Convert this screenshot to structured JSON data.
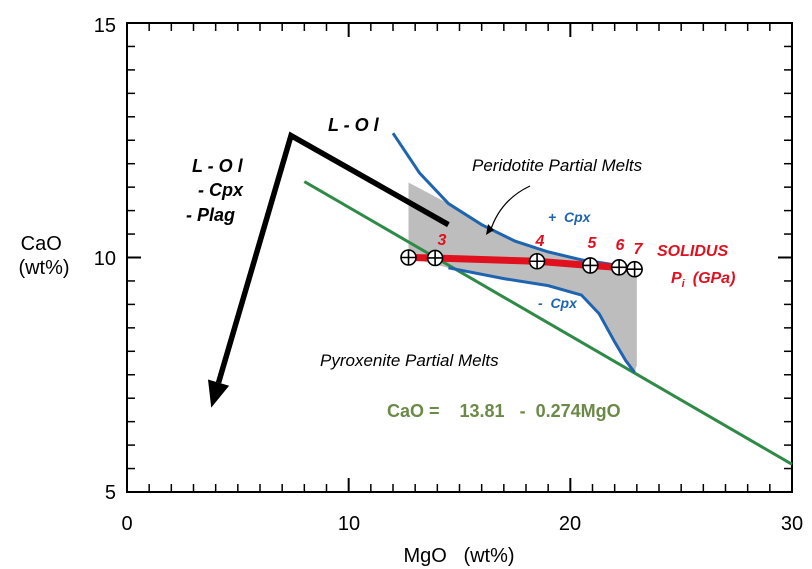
{
  "colors": {
    "black": "#000000",
    "blue": "#1f64b0",
    "green": "#2e8a46",
    "red": "#e0101e",
    "gray_fill": "#bdbdbd",
    "equation_text": "#6b8a48"
  },
  "chart_data": {
    "type": "line",
    "title": "",
    "xlabel": "MgO   (wt%)",
    "ylabel": "CaO\n(wt%)",
    "xlim": [
      0,
      30
    ],
    "ylim": [
      5,
      15
    ],
    "xticks": [
      0,
      10,
      20,
      30
    ],
    "yticks": [
      5,
      10,
      15
    ],
    "xtick_labels": [
      "0",
      "10",
      "20",
      "30"
    ],
    "ytick_labels": [
      "5",
      "10",
      "15"
    ],
    "grid": false,
    "series": [
      {
        "kind": "line",
        "color": "#2e8a46",
        "x": [
          8.0,
          30.0
        ],
        "y": [
          11.62,
          5.59
        ]
      },
      {
        "kind": "line",
        "color": "#000000",
        "x": [
          14.5,
          7.4,
          3.8
        ],
        "y": [
          10.7,
          12.6,
          6.8
        ],
        "arrow_end": true
      },
      {
        "kind": "line",
        "color": "#1f64b0",
        "x": [
          12.0,
          13.2,
          14.5,
          16.0,
          17.5,
          19.0,
          20.5,
          21.5,
          22.8
        ],
        "y": [
          12.65,
          11.8,
          11.15,
          10.7,
          10.35,
          10.12,
          9.95,
          9.88,
          9.78
        ]
      },
      {
        "kind": "line",
        "color": "#1f64b0",
        "x": [
          14.5,
          17.0,
          19.0,
          20.5,
          21.3,
          22.0,
          22.5,
          22.9
        ],
        "y": [
          9.78,
          9.55,
          9.4,
          9.2,
          8.8,
          8.2,
          7.8,
          7.55
        ]
      },
      {
        "kind": "line",
        "color": "#e0101e",
        "x": [
          12.7,
          13.9,
          18.5,
          20.9,
          22.2,
          22.9
        ],
        "y": [
          10.0,
          9.99,
          9.92,
          9.83,
          9.79,
          9.75
        ]
      },
      {
        "kind": "points",
        "x": [
          12.7,
          13.9,
          18.5,
          20.9,
          22.2,
          22.9
        ],
        "y": [
          10.0,
          9.99,
          9.92,
          9.83,
          9.79,
          9.75
        ]
      },
      {
        "kind": "area",
        "color": "#bdbdbd",
        "x": [
          12.7,
          12.7,
          14.5,
          16.0,
          17.5,
          19.0,
          20.5,
          21.5,
          22.5,
          23.0,
          23.0,
          22.9,
          22.5,
          22.0,
          21.3,
          20.5,
          19.0,
          17.0,
          14.5,
          12.7
        ],
        "y": [
          10.0,
          11.6,
          11.15,
          10.7,
          10.35,
          10.12,
          9.95,
          9.88,
          9.8,
          9.6,
          7.7,
          7.55,
          7.8,
          8.2,
          8.8,
          9.2,
          9.4,
          9.55,
          9.78,
          10.0
        ]
      }
    ],
    "annotations": {
      "l_ol": "L - O l",
      "l_ol_cpx_plag": [
        "L - O l",
        "- Cpx",
        "- Plag"
      ],
      "peridotite": "Peridotite Partial Melts",
      "pyroxenite": "Pyroxenite Partial Melts",
      "plus_cpx": "+  Cpx",
      "minus_cpx": "-  Cpx",
      "solidus": "SOLIDUS",
      "pi_label": "P",
      "pi_sub": "i",
      "pi_unit": "(GPa)",
      "pressure_labels": [
        "3",
        "4",
        "5",
        "6",
        "7"
      ],
      "equation": "CaO =    13.81   -  0.274MgO"
    }
  }
}
